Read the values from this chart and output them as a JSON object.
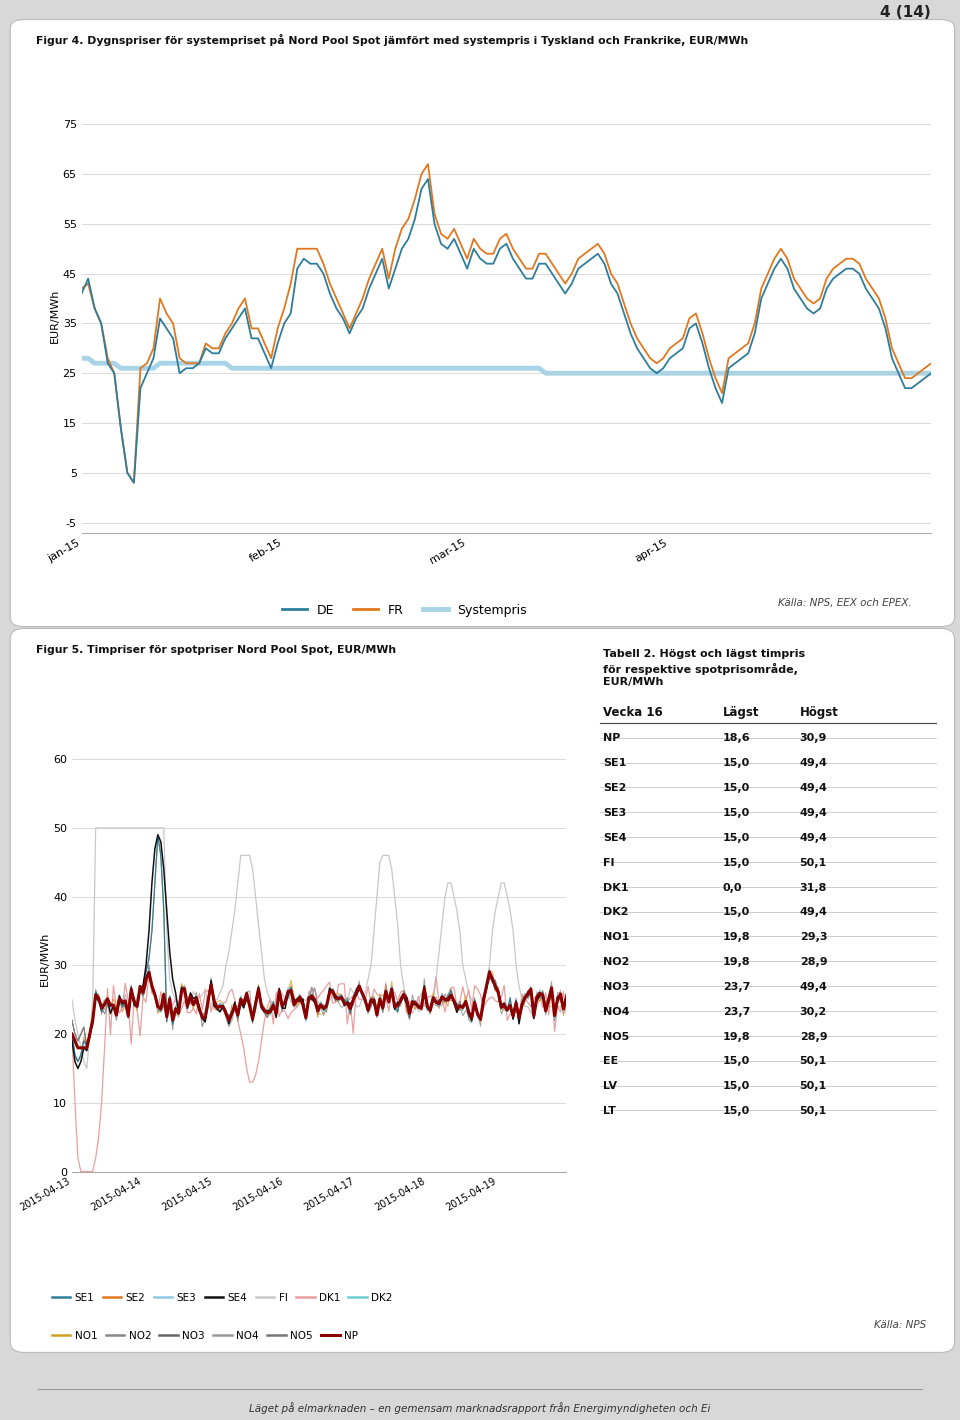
{
  "page_header": "4 (14)",
  "fig1_title": "Figur 4. Dygnspriser för systempriset på Nord Pool Spot jämfört med systempris i Tyskland och Frankrike, EUR/MWh",
  "fig1_ylabel": "EUR/MWh",
  "fig1_yticks": [
    -5,
    5,
    15,
    25,
    35,
    45,
    55,
    65,
    75
  ],
  "fig1_xticks": [
    "jan-15",
    "feb-15",
    "mar-15",
    "apr-15"
  ],
  "fig1_source": "Källa: NPS, EEX och EPEX.",
  "fig1_colors": {
    "DE": "#2e7d9c",
    "FR": "#e07820",
    "Systempris": "#a8d4e8"
  },
  "fig2_title": "Figur 5. Timpriser för spotpriser Nord Pool Spot, EUR/MWh",
  "fig2_ylabel": "EUR/MWh",
  "fig2_yticks": [
    0,
    10,
    20,
    30,
    40,
    50,
    60
  ],
  "fig2_source": "Källa: NPS",
  "fig2_xticks": [
    "2015-04-13",
    "2015-04-14",
    "2015-04-15",
    "2015-04-16",
    "2015-04-17",
    "2015-04-18",
    "2015-04-19"
  ],
  "fig2_colors": {
    "SE1": "#2e7d9c",
    "SE2": "#e07820",
    "SE3": "#8ecae6",
    "SE4": "#111111",
    "FI": "#c0c0c0",
    "DK1": "#e8a0a0",
    "DK2": "#6dccd4",
    "NO1": "#d4a020",
    "NO2": "#555555",
    "NO3": "#333333",
    "NO4": "#777777",
    "NO5": "#444444",
    "NP": "#8b0000"
  },
  "fig2_legend_row1": [
    "SE1",
    "SE2",
    "SE3",
    "SE4",
    "FI",
    "DK1",
    "DK2"
  ],
  "fig2_legend_row2": [
    "NO1",
    "NO2",
    "NO3",
    "NO4",
    "NO5",
    "NP"
  ],
  "tabell2_title_line1": "Tabell 2. Högst och lägst timpris",
  "tabell2_title_line2": "för respektive spotprisområde,",
  "tabell2_title_line3": "EUR/MWh",
  "tabell2_header": [
    "Vecka 16",
    "Lägst",
    "Högst"
  ],
  "tabell2_rows": [
    [
      "NP",
      "18,6",
      "30,9"
    ],
    [
      "SE1",
      "15,0",
      "49,4"
    ],
    [
      "SE2",
      "15,0",
      "49,4"
    ],
    [
      "SE3",
      "15,0",
      "49,4"
    ],
    [
      "SE4",
      "15,0",
      "49,4"
    ],
    [
      "FI",
      "15,0",
      "50,1"
    ],
    [
      "DK1",
      "0,0",
      "31,8"
    ],
    [
      "DK2",
      "15,0",
      "49,4"
    ],
    [
      "NO1",
      "19,8",
      "29,3"
    ],
    [
      "NO2",
      "19,8",
      "28,9"
    ],
    [
      "NO3",
      "23,7",
      "49,4"
    ],
    [
      "NO4",
      "23,7",
      "30,2"
    ],
    [
      "NO5",
      "19,8",
      "28,9"
    ],
    [
      "EE",
      "15,0",
      "50,1"
    ],
    [
      "LV",
      "15,0",
      "50,1"
    ],
    [
      "LT",
      "15,0",
      "50,1"
    ]
  ],
  "tabell2_source": "Källa: NPS",
  "footer": "Läget på elmarknaden – en gemensam marknadsrapport från Energimyndigheten och Ei",
  "fig1_DE": [
    41,
    44,
    38,
    35,
    27,
    25,
    14,
    5,
    3,
    22,
    25,
    28,
    36,
    34,
    32,
    25,
    26,
    26,
    27,
    30,
    29,
    29,
    32,
    34,
    36,
    38,
    32,
    32,
    29,
    26,
    31,
    35,
    37,
    46,
    48,
    47,
    47,
    45,
    41,
    38,
    36,
    33,
    36,
    38,
    42,
    45,
    48,
    42,
    46,
    50,
    52,
    56,
    62,
    64,
    55,
    51,
    50,
    52,
    49,
    46,
    50,
    48,
    47,
    47,
    50,
    51,
    48,
    46,
    44,
    44,
    47,
    47,
    45,
    43,
    41,
    43,
    46,
    47,
    48,
    49,
    47,
    43,
    41,
    37,
    33,
    30,
    28,
    26,
    25,
    26,
    28,
    29,
    30,
    34,
    35,
    31,
    26,
    22,
    19,
    26,
    27,
    28,
    29,
    33,
    40,
    43,
    46,
    48,
    46,
    42,
    40,
    38,
    37,
    38,
    42,
    44,
    45,
    46,
    46,
    45,
    42,
    40,
    38,
    34,
    28,
    25,
    22,
    22,
    23,
    24,
    25
  ],
  "fig1_FR": [
    42,
    43,
    38,
    35,
    28,
    25,
    14,
    5,
    3,
    26,
    27,
    30,
    40,
    37,
    35,
    28,
    27,
    27,
    27,
    31,
    30,
    30,
    33,
    35,
    38,
    40,
    34,
    34,
    31,
    28,
    34,
    38,
    43,
    50,
    50,
    50,
    50,
    47,
    43,
    40,
    37,
    34,
    37,
    40,
    44,
    47,
    50,
    44,
    50,
    54,
    56,
    60,
    65,
    67,
    57,
    53,
    52,
    54,
    51,
    48,
    52,
    50,
    49,
    49,
    52,
    53,
    50,
    48,
    46,
    46,
    49,
    49,
    47,
    45,
    43,
    45,
    48,
    49,
    50,
    51,
    49,
    45,
    43,
    39,
    35,
    32,
    30,
    28,
    27,
    28,
    30,
    31,
    32,
    36,
    37,
    33,
    28,
    24,
    21,
    28,
    29,
    30,
    31,
    35,
    42,
    45,
    48,
    50,
    48,
    44,
    42,
    40,
    39,
    40,
    44,
    46,
    47,
    48,
    48,
    47,
    44,
    42,
    40,
    36,
    30,
    27,
    24,
    24,
    25,
    26,
    27
  ],
  "fig1_SYS": [
    28,
    28,
    27,
    27,
    27,
    27,
    26,
    26,
    26,
    26,
    26,
    26,
    27,
    27,
    27,
    27,
    27,
    27,
    27,
    27,
    27,
    27,
    27,
    26,
    26,
    26,
    26,
    26,
    26,
    26,
    26,
    26,
    26,
    26,
    26,
    26,
    26,
    26,
    26,
    26,
    26,
    26,
    26,
    26,
    26,
    26,
    26,
    26,
    26,
    26,
    26,
    26,
    26,
    26,
    26,
    26,
    26,
    26,
    26,
    26,
    26,
    26,
    26,
    26,
    26,
    26,
    26,
    26,
    26,
    26,
    26,
    25,
    25,
    25,
    25,
    25,
    25,
    25,
    25,
    25,
    25,
    25,
    25,
    25,
    25,
    25,
    25,
    25,
    25,
    25,
    25,
    25,
    25,
    25,
    25,
    25,
    25,
    25,
    25,
    25,
    25,
    25,
    25,
    25,
    25,
    25,
    25,
    25,
    25,
    25,
    25,
    25,
    25,
    25,
    25,
    25,
    25,
    25,
    25,
    25,
    25,
    25,
    25,
    25,
    25,
    25,
    25,
    25,
    25,
    25,
    25
  ]
}
